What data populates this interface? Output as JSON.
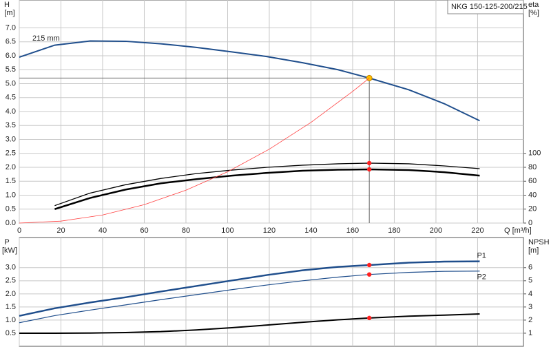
{
  "chart_data": [
    {
      "type": "line",
      "title": "NKG 150-125-200/215",
      "annotation": "215 mm",
      "ylabel": "H",
      "ylabel_unit": "[m]",
      "y2label": "eta",
      "y2label_unit": "[%]",
      "xlabel": "Q [m³/h]",
      "xlim": [
        0,
        242
      ],
      "xticks": [
        0,
        20,
        40,
        60,
        80,
        100,
        120,
        140,
        160,
        180,
        200,
        220
      ],
      "ylim": [
        0,
        8
      ],
      "yticks": [
        {
          "value": 0,
          "label": "0.0"
        },
        0.5,
        {
          "value": 1,
          "label": "1.0"
        },
        1.5,
        {
          "value": 2,
          "label": "2.0"
        },
        2.5,
        {
          "value": 3,
          "label": "3.0"
        },
        3.5,
        {
          "value": 4,
          "label": "4.0"
        },
        4.5,
        {
          "value": 5,
          "label": "5.0"
        },
        5.5,
        {
          "value": 6,
          "label": "6.0"
        },
        6.5,
        {
          "value": 7,
          "label": "7.0"
        }
      ],
      "y2lim": [
        0,
        320
      ],
      "y2ticks": [
        0,
        20,
        40,
        60,
        80,
        100
      ],
      "grid": true,
      "show_x_labels": true,
      "operating_point": {
        "x": 168,
        "y": 5.2
      },
      "series": [
        {
          "color": "#1f4e8c",
          "line_width": 2,
          "marker_color": "#ffc000",
          "x": [
            0,
            17,
            34,
            51,
            68,
            85,
            102,
            119,
            136,
            153,
            168,
            187,
            204,
            221
          ],
          "values": [
            5.95,
            6.38,
            6.53,
            6.52,
            6.43,
            6.3,
            6.14,
            5.97,
            5.75,
            5.5,
            5.2,
            4.78,
            4.28,
            3.67
          ]
        },
        {
          "color": "#000000",
          "line_width": 1.3,
          "axis": "y2",
          "marker_color": "#ff2020",
          "x": [
            17,
            34,
            51,
            68,
            85,
            102,
            119,
            136,
            153,
            168,
            187,
            204,
            221
          ],
          "values": [
            25,
            43,
            55,
            64,
            71,
            76,
            80,
            83,
            85,
            86,
            85,
            82,
            78
          ]
        },
        {
          "color": "#000000",
          "line_width": 2.5,
          "axis": "y2",
          "marker_color": "#ff2020",
          "x": [
            17,
            34,
            51,
            68,
            85,
            102,
            119,
            136,
            153,
            168,
            187,
            204,
            221
          ],
          "values": [
            20,
            36,
            48,
            57,
            63,
            68,
            72,
            75,
            76.5,
            77,
            76,
            73,
            68
          ]
        },
        {
          "color": "#ff4040",
          "line_width": 0.8,
          "x": [
            0,
            20,
            40,
            60,
            80,
            100,
            120,
            140,
            160,
            168
          ],
          "values": [
            0,
            0.07,
            0.29,
            0.66,
            1.18,
            1.84,
            2.65,
            3.61,
            4.72,
            5.2
          ]
        }
      ]
    },
    {
      "type": "line",
      "ylabel": "P",
      "ylabel_unit": "[kW]",
      "y2label": "NPSH",
      "y2label_unit": "[m]",
      "xlim": [
        0,
        242
      ],
      "xticks": [
        0,
        20,
        40,
        60,
        80,
        100,
        120,
        140,
        160,
        180,
        200,
        220
      ],
      "ylim": [
        0,
        4.15
      ],
      "yticks": [
        0.5,
        {
          "value": 1,
          "label": "1.0"
        },
        1.5,
        {
          "value": 2,
          "label": "2.0"
        },
        2.5,
        {
          "value": 3,
          "label": "3.0"
        }
      ],
      "y2lim": [
        0,
        8.3
      ],
      "y2ticks": [
        1,
        2,
        3,
        4,
        5,
        6
      ],
      "grid": true,
      "show_x_labels": false,
      "operating_point": {
        "x": 168
      },
      "series": [
        {
          "name": "P1",
          "label_side": "above",
          "color": "#1f4e8c",
          "line_width": 2.5,
          "marker_color": "#ff2020",
          "x": [
            0,
            17,
            34,
            51,
            68,
            85,
            102,
            119,
            136,
            153,
            168,
            187,
            204,
            221
          ],
          "values": [
            1.16,
            1.45,
            1.67,
            1.87,
            2.09,
            2.3,
            2.51,
            2.72,
            2.9,
            3.03,
            3.1,
            3.19,
            3.23,
            3.24
          ]
        },
        {
          "name": "P2",
          "label_side": "below",
          "color": "#1f4e8c",
          "line_width": 1.2,
          "marker_color": "#ff2020",
          "x": [
            0,
            17,
            34,
            51,
            68,
            85,
            102,
            119,
            136,
            153,
            168,
            187,
            204,
            221
          ],
          "values": [
            0.9,
            1.17,
            1.38,
            1.58,
            1.78,
            1.97,
            2.16,
            2.34,
            2.5,
            2.64,
            2.74,
            2.82,
            2.86,
            2.87
          ]
        },
        {
          "color": "#000000",
          "line_width": 2,
          "axis": "y2",
          "marker_color": "#ff2020",
          "x": [
            0,
            17,
            34,
            51,
            68,
            85,
            102,
            119,
            136,
            153,
            168,
            187,
            204,
            221
          ],
          "values": [
            1.0,
            1.0,
            1.01,
            1.05,
            1.12,
            1.25,
            1.42,
            1.62,
            1.83,
            2.02,
            2.16,
            2.3,
            2.38,
            2.47
          ]
        }
      ]
    }
  ]
}
